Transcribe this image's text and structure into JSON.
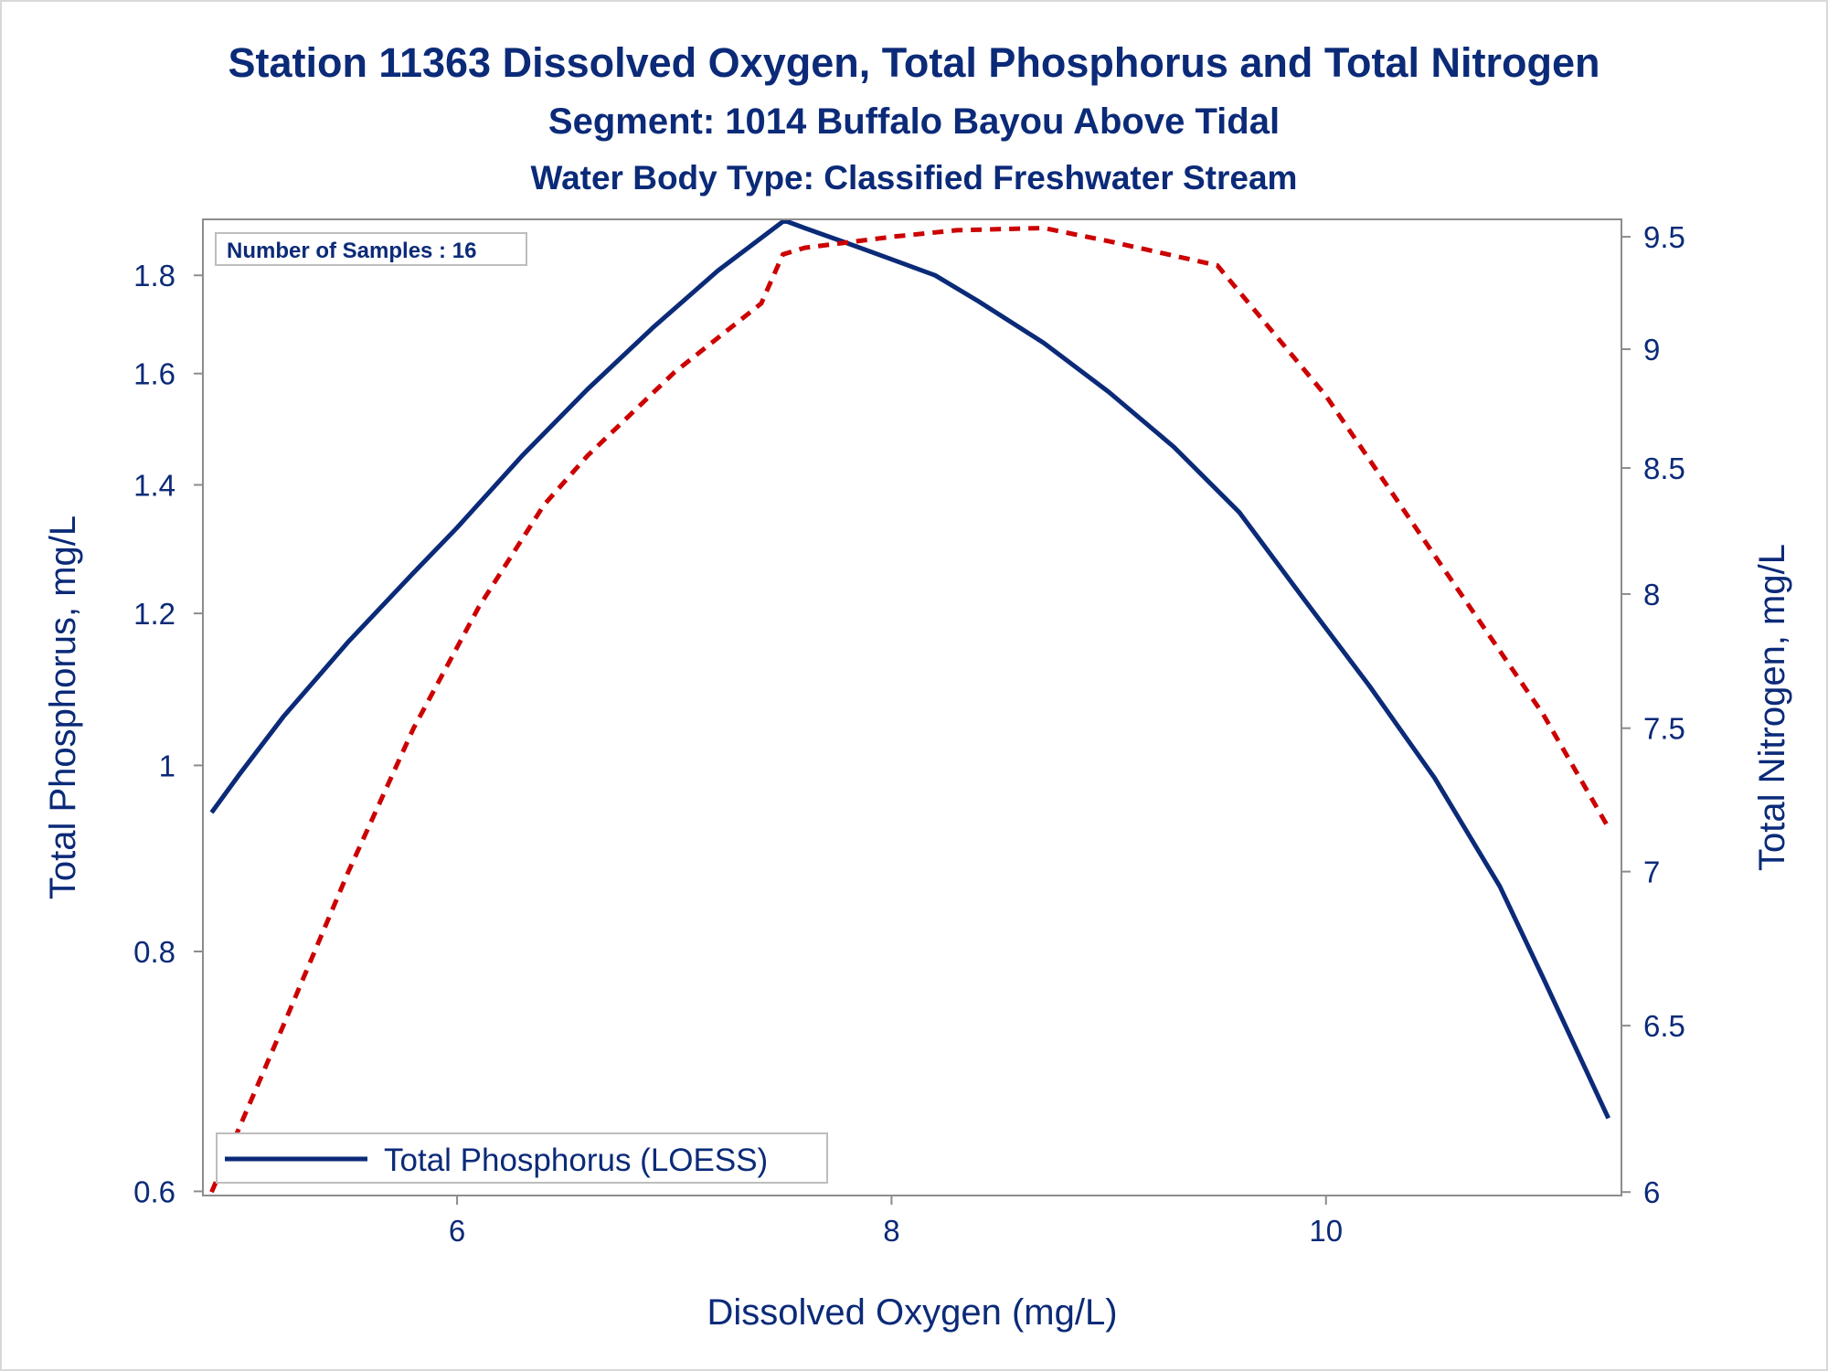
{
  "titles": {
    "line1": "Station 11363  Dissolved Oxygen, Total Phosphorus and Total Nitrogen",
    "line2": "Segment: 1014  Buffalo Bayou Above Tidal",
    "line3": "Water Body Type: Classified Freshwater Stream"
  },
  "inset_note": "Number of Samples : 16",
  "legend": {
    "entries": [
      {
        "label": "Total Phosphorus (LOESS)",
        "color": "#0b2a78",
        "style": "solid"
      }
    ],
    "placement": "bottom-left inside"
  },
  "chart_data": {
    "type": "line",
    "xlabel": "Dissolved Oxygen (mg/L)",
    "ylabel": "Total Phosphorus, mg/L",
    "y2label": "Total Nitrogen, mg/L",
    "xlim": [
      4.83,
      11.36
    ],
    "ylim": [
      0.597,
      1.925
    ],
    "y2lim": [
      5.99,
      9.58
    ],
    "y_scale": "log",
    "y2_scale": "log",
    "xticks": [
      6,
      8,
      10
    ],
    "xtick_labels": [
      "6",
      "8",
      "10"
    ],
    "yticks": [
      0.6,
      0.8,
      1.0,
      1.2,
      1.4,
      1.6,
      1.8
    ],
    "ytick_labels": [
      "0.6",
      "0.8",
      "1",
      "1.2",
      "1.4",
      "1.6",
      "1.8"
    ],
    "y2ticks": [
      6,
      6.5,
      7,
      7.5,
      8,
      8.5,
      9,
      9.5
    ],
    "y2tick_labels": [
      "6",
      "6.5",
      "7",
      "7.5",
      "8",
      "8.5",
      "9",
      "9.5"
    ],
    "grid": false,
    "series": [
      {
        "name": "Total Phosphorus (LOESS)",
        "axis": "left",
        "color": "#0b2a78",
        "dash": "solid",
        "x": [
          4.87,
          5.0,
          5.2,
          5.5,
          5.8,
          6.0,
          6.3,
          6.6,
          6.9,
          7.2,
          7.5,
          7.52,
          7.6,
          7.8,
          8.0,
          8.2,
          8.4,
          8.7,
          9.0,
          9.3,
          9.6,
          9.9,
          10.2,
          10.5,
          10.8,
          11.0,
          11.3
        ],
        "y": [
          0.945,
          0.99,
          1.06,
          1.16,
          1.26,
          1.33,
          1.45,
          1.57,
          1.69,
          1.81,
          1.92,
          1.92,
          1.905,
          1.87,
          1.835,
          1.8,
          1.745,
          1.66,
          1.565,
          1.465,
          1.355,
          1.22,
          1.1,
          0.985,
          0.865,
          0.775,
          0.655
        ]
      },
      {
        "name": "",
        "axis": "right",
        "color": "#cc0000",
        "dash": "dashed",
        "x": [
          4.87,
          5.2,
          5.5,
          5.8,
          6.1,
          6.4,
          6.6,
          7.0,
          7.4,
          7.5,
          7.6,
          8.0,
          8.3,
          8.7,
          9.0,
          9.5,
          10.0,
          10.5,
          11.0,
          11.3
        ],
        "y": [
          6.0,
          6.5,
          7.0,
          7.5,
          7.95,
          8.35,
          8.55,
          8.9,
          9.2,
          9.42,
          9.45,
          9.5,
          9.53,
          9.54,
          9.48,
          9.37,
          8.8,
          8.15,
          7.55,
          7.15
        ]
      }
    ]
  }
}
